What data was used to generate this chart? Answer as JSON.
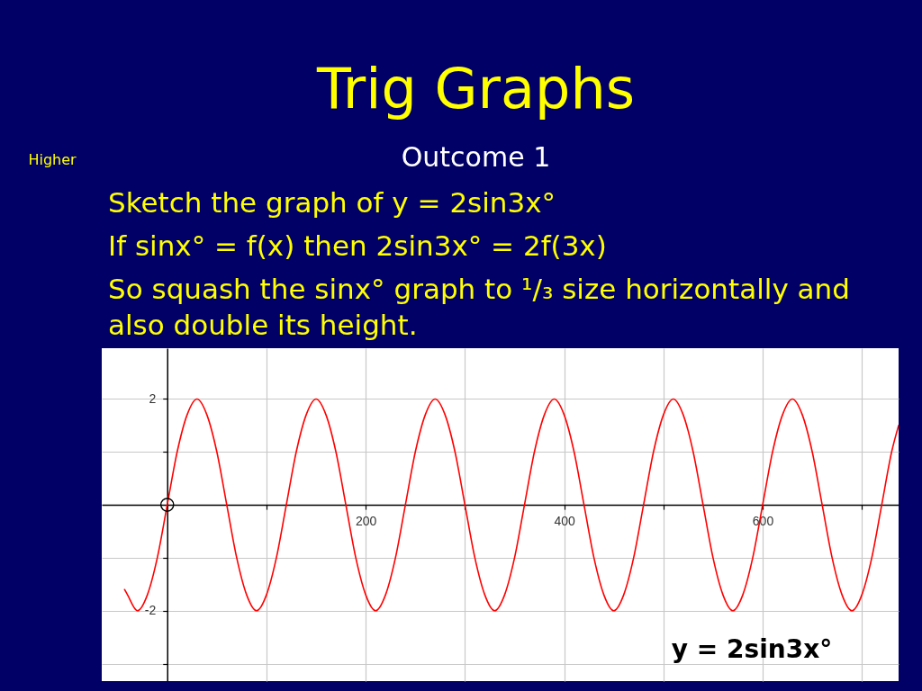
{
  "chart_data": {
    "type": "line",
    "title": "Trig Graphs",
    "subtitle": "Outcome 1",
    "annotations": [
      "Higher",
      "Sketch the graph of   y = 2sin3x°",
      "If    sinx° = f(x)    then     2sin3x° = 2f(3x)",
      "So squash the sinx° graph to ¹/₃ size horizontally and also double its height.",
      "y = 2sin3x°"
    ],
    "series": [
      {
        "color": "#ff0000",
        "x": [
          -43,
          -40,
          -30,
          -20,
          -10,
          0,
          10,
          20,
          30,
          40,
          50,
          60,
          70,
          80,
          90,
          100,
          110,
          120,
          130,
          140,
          150,
          160,
          170,
          180,
          190,
          200,
          210,
          220,
          230,
          240,
          250,
          260,
          270,
          280,
          290,
          300,
          310,
          320,
          330,
          340,
          350,
          360,
          370,
          380,
          390,
          400,
          410,
          420,
          430,
          440,
          450,
          460,
          470,
          480,
          490,
          500,
          510,
          520,
          530,
          540,
          550,
          560,
          570,
          580,
          590,
          600,
          610,
          620,
          630,
          640,
          650,
          660,
          670,
          680,
          690,
          700,
          710,
          720,
          730,
          737
        ],
        "values": [
          -1.6,
          -1.7,
          -2,
          -1.7,
          -1,
          0,
          1,
          1.7,
          2,
          1.7,
          1,
          0,
          -1,
          -1.7,
          -2,
          -1.7,
          -1,
          0,
          1,
          1.7,
          2,
          1.7,
          1,
          0,
          -1,
          -1.7,
          -2,
          -1.7,
          -1,
          0,
          1,
          1.7,
          2,
          1.7,
          1,
          0,
          -1,
          -1.7,
          -2,
          -1.7,
          -1,
          0,
          1,
          1.7,
          2,
          1.7,
          1,
          0,
          -1,
          -1.7,
          -2,
          -1.7,
          -1,
          0,
          1,
          1.7,
          2,
          1.7,
          1,
          0,
          -1,
          -1.7,
          -2,
          -1.7,
          -1,
          0,
          1,
          1.7,
          2,
          1.7,
          1,
          0,
          -1,
          -1.7,
          -2,
          -1.7,
          -1,
          0,
          1,
          1.5
        ]
      },
      {
        "type": "scatter",
        "color": "#000000",
        "marker": "circle",
        "x": [
          0
        ],
        "values": [
          0
        ]
      }
    ],
    "xlim": [
      -66,
      737
    ],
    "ylim": [
      -3.33,
      2.96
    ],
    "xticks": [
      {
        "value": 100,
        "label": null
      },
      200,
      {
        "value": 300,
        "label": null
      },
      400,
      {
        "value": 500,
        "label": null
      },
      600,
      {
        "value": 700,
        "label": null
      }
    ],
    "yticks": [
      {
        "value": -3,
        "label": null
      },
      -2,
      {
        "value": -1,
        "label": null
      },
      {
        "value": 1,
        "label": null
      },
      2
    ],
    "grid": true
  }
}
